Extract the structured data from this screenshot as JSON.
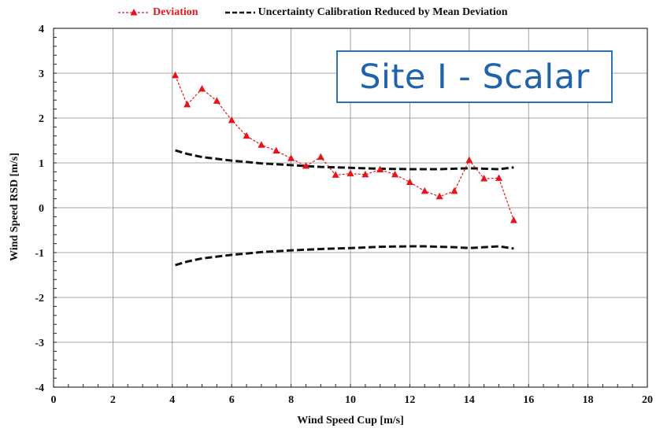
{
  "chart_data": {
    "type": "line",
    "xlabel": "Wind Speed Cup [m/s]",
    "ylabel": "Wind Speed RSD [m/s]",
    "xlim": [
      0,
      20
    ],
    "ylim": [
      -4,
      4
    ],
    "xticks": [
      "0",
      "2",
      "4",
      "6",
      "8",
      "10",
      "12",
      "14",
      "16",
      "18",
      "20"
    ],
    "yticks": [
      "-4",
      "-3",
      "-2",
      "-1",
      "0",
      "1",
      "2",
      "3",
      "4"
    ],
    "grid": true,
    "legend_position": "top",
    "annotation": "Site I - Scalar",
    "series": [
      {
        "name": "Deviation",
        "color": "#e8141b",
        "style": "dashed-with-triangle-markers",
        "x": [
          4.1,
          4.5,
          5.0,
          5.5,
          6.0,
          6.5,
          7.0,
          7.5,
          8.0,
          8.5,
          9.0,
          9.5,
          10.0,
          10.5,
          11.0,
          11.5,
          12.0,
          12.5,
          13.0,
          13.5,
          14.0,
          14.5,
          15.0,
          15.5
        ],
        "y": [
          2.95,
          2.3,
          2.65,
          2.38,
          1.95,
          1.6,
          1.4,
          1.27,
          1.1,
          0.93,
          1.13,
          0.73,
          0.76,
          0.74,
          0.85,
          0.74,
          0.57,
          0.37,
          0.25,
          0.37,
          1.06,
          0.65,
          0.66,
          -0.28
        ]
      },
      {
        "name": "Uncertainty Calibration Reduced by Mean Deviation",
        "color": "#111111",
        "style": "dashed",
        "bands": [
          {
            "x": [
              4.1,
              4.5,
              5.0,
              6.0,
              7.0,
              8.0,
              9.0,
              10.0,
              11.0,
              12.0,
              12.5,
              13.0,
              13.5,
              14.0,
              14.5,
              15.0,
              15.5
            ],
            "y": [
              1.28,
              1.2,
              1.13,
              1.05,
              0.99,
              0.95,
              0.91,
              0.89,
              0.87,
              0.86,
              0.86,
              0.86,
              0.87,
              0.88,
              0.87,
              0.86,
              0.9
            ]
          },
          {
            "x": [
              4.1,
              4.5,
              5.0,
              6.0,
              7.0,
              8.0,
              9.0,
              10.0,
              11.0,
              12.0,
              12.5,
              13.0,
              13.5,
              14.0,
              14.5,
              15.0,
              15.5
            ],
            "y": [
              -1.28,
              -1.2,
              -1.13,
              -1.05,
              -0.99,
              -0.95,
              -0.92,
              -0.9,
              -0.87,
              -0.86,
              -0.86,
              -0.87,
              -0.88,
              -0.9,
              -0.88,
              -0.86,
              -0.91
            ]
          }
        ]
      }
    ]
  }
}
